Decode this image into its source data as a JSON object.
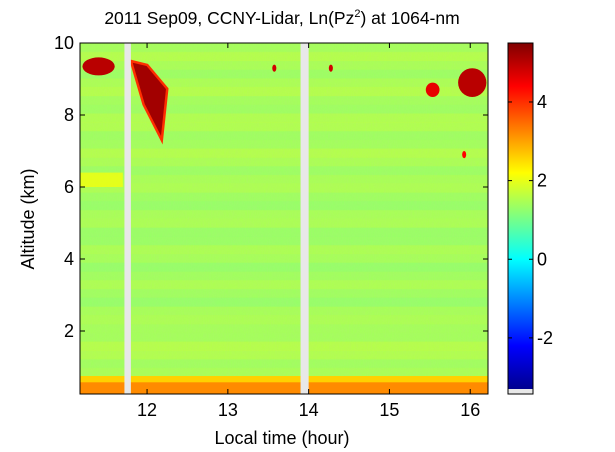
{
  "chart_data": {
    "type": "heatmap",
    "title": {
      "prefix": "2011 Sep09, CCNY-Lidar, Ln(Pz",
      "superscript": "2",
      "suffix": ") at 1064-nm"
    },
    "xlabel": "Local time (hour)",
    "ylabel": "Altitude (km)",
    "xlim": [
      11.17,
      16.22
    ],
    "ylim": [
      0.25,
      10.0
    ],
    "xticks": [
      12,
      13,
      14,
      15,
      16
    ],
    "xtick_labels": [
      "12",
      "13",
      "14",
      "15",
      "16"
    ],
    "yticks": [
      2,
      4,
      6,
      8,
      10
    ],
    "ytick_labels": [
      "2",
      "4",
      "6",
      "8",
      "10"
    ],
    "colorbar": {
      "range": [
        -3.3,
        5.5
      ],
      "ticks": [
        -2,
        0,
        2,
        4
      ],
      "tick_labels": [
        "-2",
        "0",
        "2",
        "4"
      ],
      "colormap": "jet"
    },
    "background_value": 1.4,
    "data_gaps": [
      {
        "x": [
          11.72,
          11.8
        ]
      },
      {
        "x": [
          13.9,
          14.0
        ]
      }
    ],
    "features": [
      {
        "name": "surface aerosol layer",
        "x": [
          11.17,
          16.22
        ],
        "y": [
          0.25,
          0.75
        ],
        "value": 2.6
      },
      {
        "name": "residual layer",
        "x": [
          11.17,
          11.7
        ],
        "y": [
          6.0,
          6.4
        ],
        "value": 2.1
      },
      {
        "name": "cirrus plume",
        "x": [
          11.8,
          12.25
        ],
        "y": [
          7.3,
          9.5
        ],
        "value": 5.2
      },
      {
        "name": "cirrus patch",
        "x": [
          11.2,
          11.6
        ],
        "y": [
          9.1,
          9.6
        ],
        "value": 5.0
      },
      {
        "name": "cirrus patch",
        "x": [
          15.85,
          16.2
        ],
        "y": [
          8.5,
          9.3
        ],
        "value": 5.0
      },
      {
        "name": "cirrus speck",
        "x": [
          13.55,
          13.6
        ],
        "y": [
          9.2,
          9.4
        ],
        "value": 4.8
      },
      {
        "name": "cirrus speck",
        "x": [
          14.25,
          14.3
        ],
        "y": [
          9.2,
          9.4
        ],
        "value": 4.8
      },
      {
        "name": "cirrus speck",
        "x": [
          15.45,
          15.62
        ],
        "y": [
          8.5,
          8.9
        ],
        "value": 4.6
      },
      {
        "name": "cirrus speck",
        "x": [
          15.9,
          15.95
        ],
        "y": [
          6.8,
          7.0
        ],
        "value": 4.4
      }
    ]
  }
}
